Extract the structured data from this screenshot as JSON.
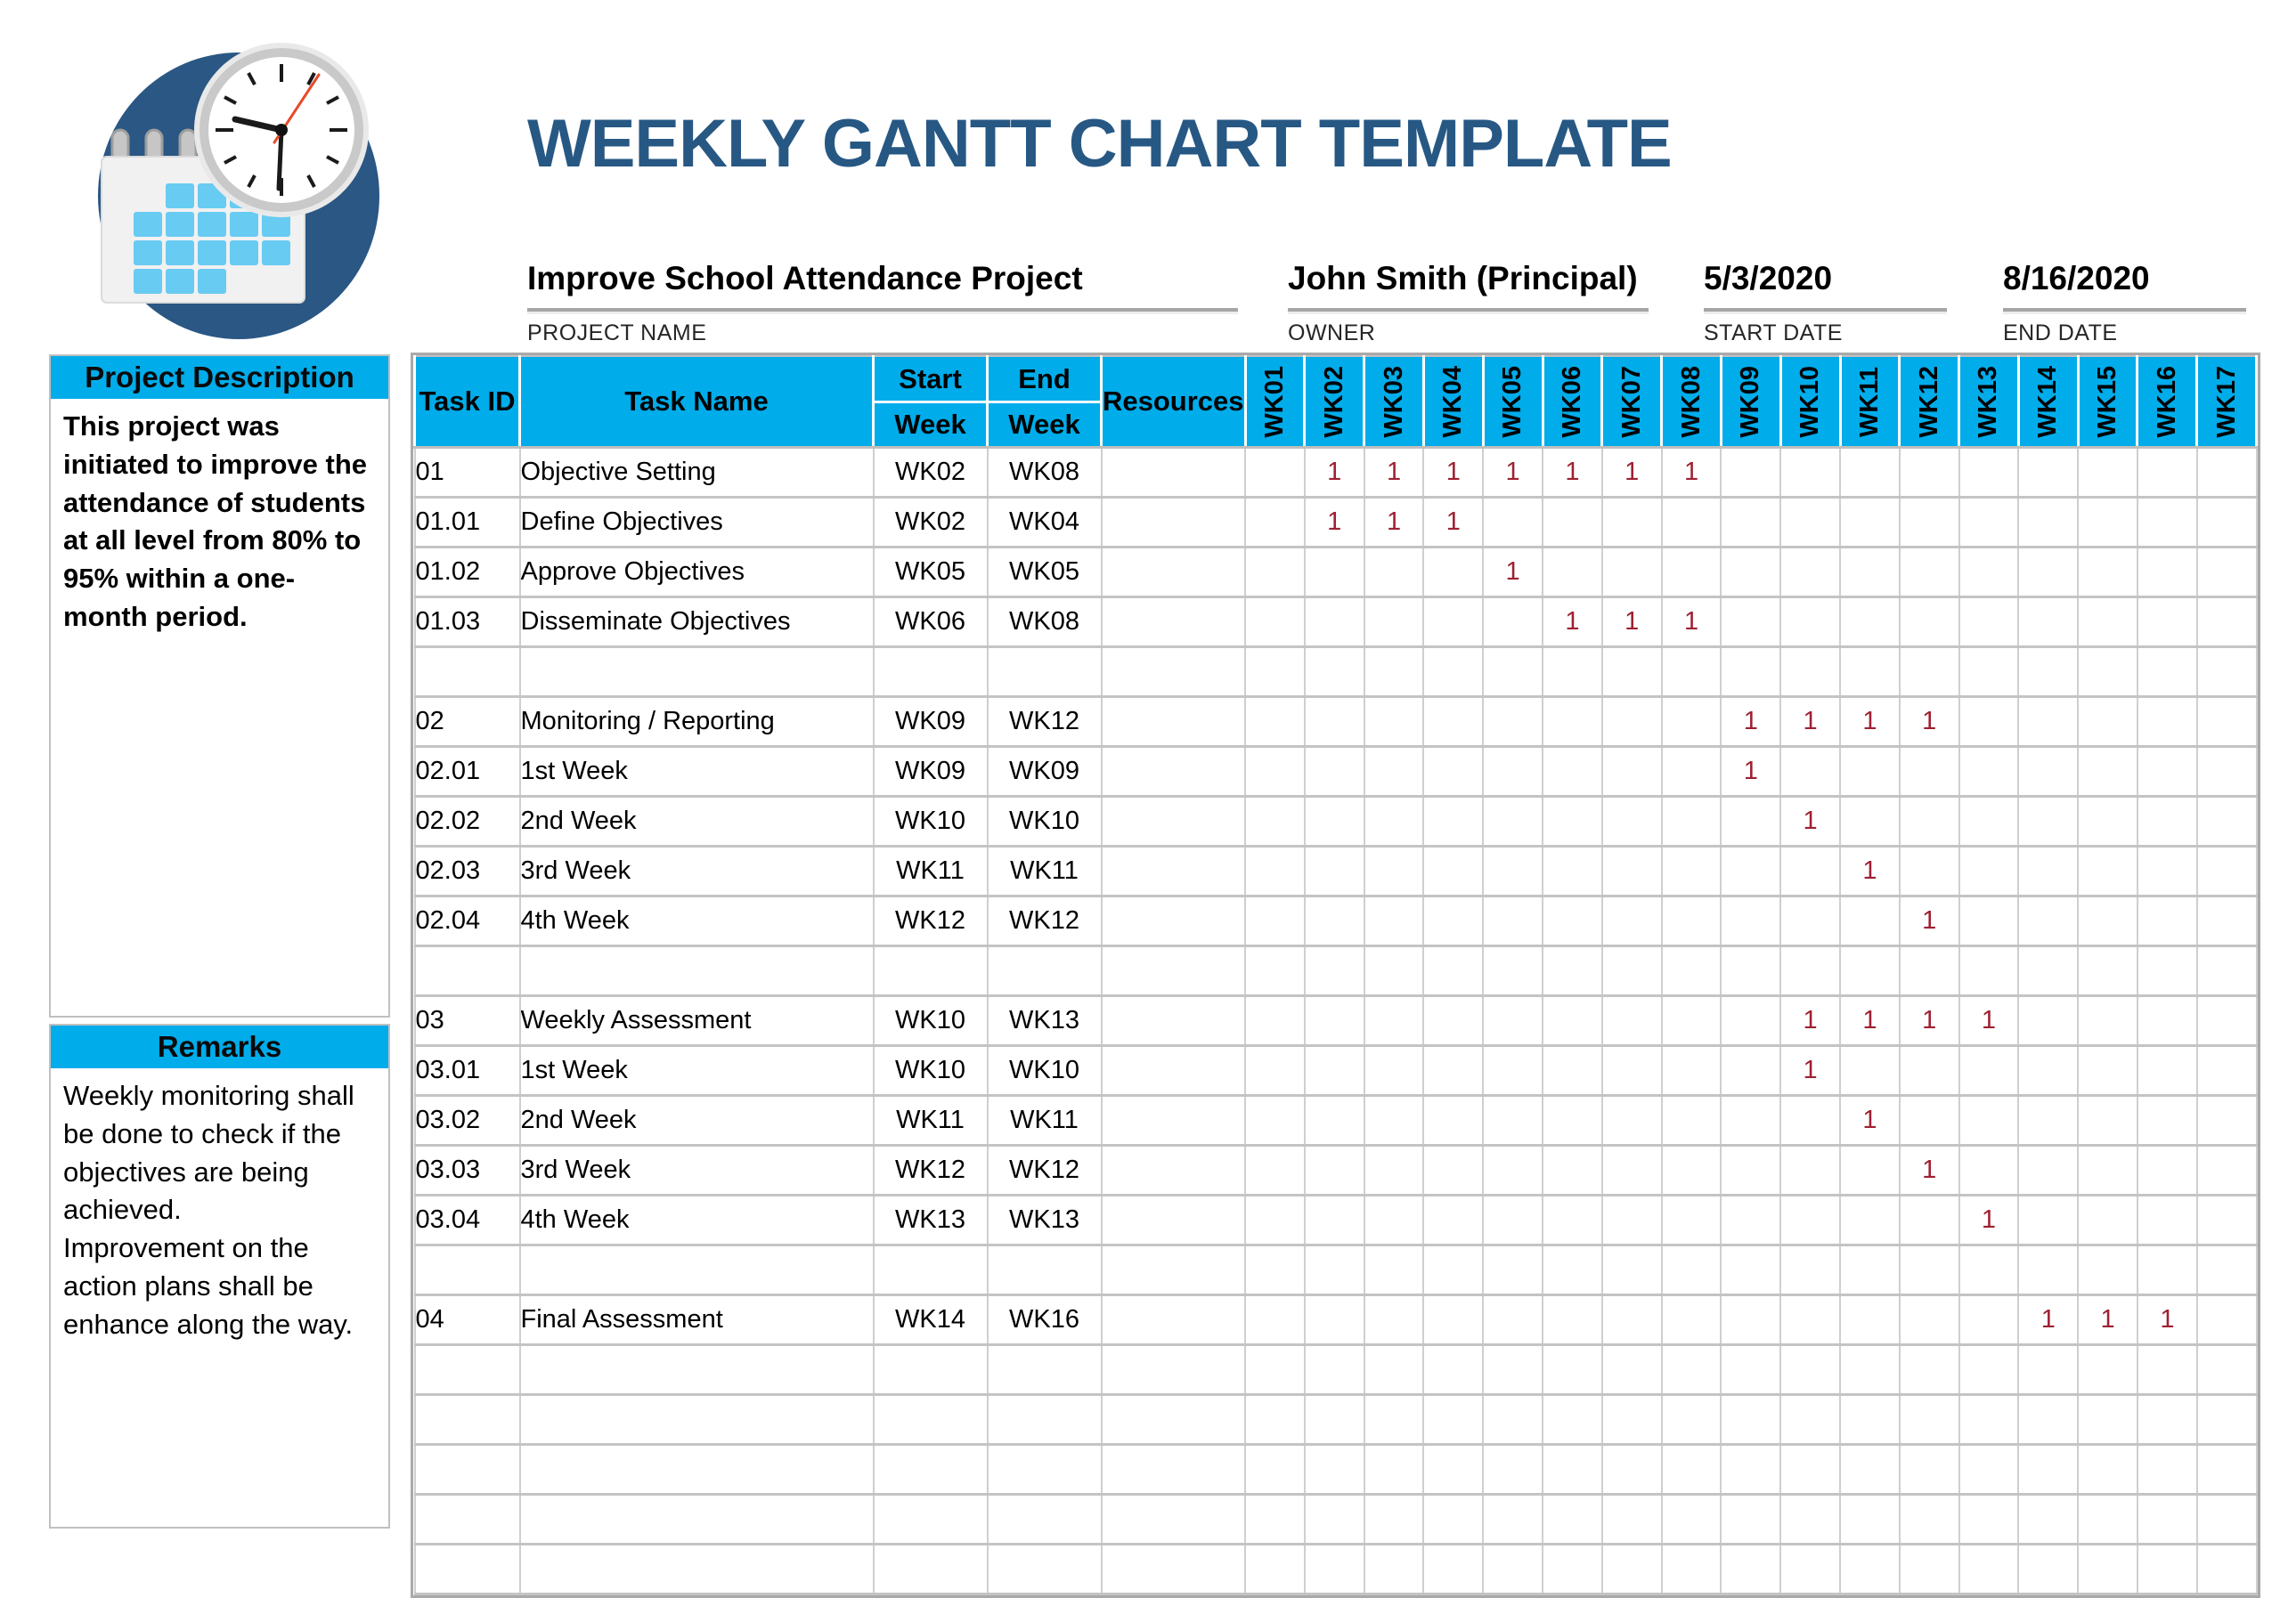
{
  "page": {
    "title": "WEEKLY GANTT CHART TEMPLATE"
  },
  "info": {
    "project_name": "Improve School Attendance Project",
    "project_name_label": "PROJECT NAME",
    "owner": "John Smith (Principal)",
    "owner_label": "OWNER",
    "start_date": "5/3/2020",
    "start_date_label": "START DATE",
    "end_date": "8/16/2020",
    "end_date_label": "END DATE"
  },
  "sidebar": {
    "description_header": "Project Description",
    "description_body": "This project was initiated to improve the attendance of students at all level from 80% to 95% within a one-month period.",
    "remarks_header": "Remarks",
    "remarks_body": "Weekly monitoring shall be done to check if the objectives are being achieved.\nImprovement on the action plans shall be enhance along the way."
  },
  "table": {
    "headers": {
      "task_id": "Task ID",
      "task_name": "Task Name",
      "start_line1": "Start",
      "start_line2": "Week",
      "end_line1": "End",
      "end_line2": "Week",
      "resources": "Resources"
    },
    "weeks": [
      "WK01",
      "WK02",
      "WK03",
      "WK04",
      "WK05",
      "WK06",
      "WK07",
      "WK08",
      "WK09",
      "WK10",
      "WK11",
      "WK12",
      "WK13",
      "WK14",
      "WK15",
      "WK16",
      "WK17"
    ],
    "bar_cell_text": "1",
    "rows": [
      {
        "task_id": "01",
        "task_name": "Objective Setting",
        "start_week": "WK02",
        "end_week": "WK08",
        "resources": "",
        "bar_start": 2,
        "bar_end": 8
      },
      {
        "task_id": "01.01",
        "task_name": "Define Objectives",
        "start_week": "WK02",
        "end_week": "WK04",
        "resources": "",
        "bar_start": 2,
        "bar_end": 4
      },
      {
        "task_id": "01.02",
        "task_name": "Approve Objectives",
        "start_week": "WK05",
        "end_week": "WK05",
        "resources": "",
        "bar_start": 5,
        "bar_end": 5
      },
      {
        "task_id": "01.03",
        "task_name": "Disseminate Objectives",
        "start_week": "WK06",
        "end_week": "WK08",
        "resources": "",
        "bar_start": 6,
        "bar_end": 8
      },
      {
        "task_id": "",
        "task_name": "",
        "start_week": "",
        "end_week": "",
        "resources": "",
        "bar_start": 0,
        "bar_end": 0
      },
      {
        "task_id": "02",
        "task_name": "Monitoring / Reporting",
        "start_week": "WK09",
        "end_week": "WK12",
        "resources": "",
        "bar_start": 9,
        "bar_end": 12
      },
      {
        "task_id": "02.01",
        "task_name": "1st Week",
        "start_week": "WK09",
        "end_week": "WK09",
        "resources": "",
        "bar_start": 9,
        "bar_end": 9
      },
      {
        "task_id": "02.02",
        "task_name": "2nd Week",
        "start_week": "WK10",
        "end_week": "WK10",
        "resources": "",
        "bar_start": 10,
        "bar_end": 10
      },
      {
        "task_id": "02.03",
        "task_name": "3rd Week",
        "start_week": "WK11",
        "end_week": "WK11",
        "resources": "",
        "bar_start": 11,
        "bar_end": 11
      },
      {
        "task_id": "02.04",
        "task_name": "4th Week",
        "start_week": "WK12",
        "end_week": "WK12",
        "resources": "",
        "bar_start": 12,
        "bar_end": 12
      },
      {
        "task_id": "",
        "task_name": "",
        "start_week": "",
        "end_week": "",
        "resources": "",
        "bar_start": 0,
        "bar_end": 0
      },
      {
        "task_id": "03",
        "task_name": "Weekly Assessment",
        "start_week": "WK10",
        "end_week": "WK13",
        "resources": "",
        "bar_start": 10,
        "bar_end": 13
      },
      {
        "task_id": "03.01",
        "task_name": "1st Week",
        "start_week": "WK10",
        "end_week": "WK10",
        "resources": "",
        "bar_start": 10,
        "bar_end": 10
      },
      {
        "task_id": "03.02",
        "task_name": "2nd Week",
        "start_week": "WK11",
        "end_week": "WK11",
        "resources": "",
        "bar_start": 11,
        "bar_end": 11
      },
      {
        "task_id": "03.03",
        "task_name": "3rd Week",
        "start_week": "WK12",
        "end_week": "WK12",
        "resources": "",
        "bar_start": 12,
        "bar_end": 12
      },
      {
        "task_id": "03.04",
        "task_name": "4th Week",
        "start_week": "WK13",
        "end_week": "WK13",
        "resources": "",
        "bar_start": 13,
        "bar_end": 13
      },
      {
        "task_id": "",
        "task_name": "",
        "start_week": "",
        "end_week": "",
        "resources": "",
        "bar_start": 0,
        "bar_end": 0
      },
      {
        "task_id": "04",
        "task_name": "Final Assessment",
        "start_week": "WK14",
        "end_week": "WK16",
        "resources": "",
        "bar_start": 14,
        "bar_end": 16
      },
      {
        "task_id": "",
        "task_name": "",
        "start_week": "",
        "end_week": "",
        "resources": "",
        "bar_start": 0,
        "bar_end": 0
      },
      {
        "task_id": "",
        "task_name": "",
        "start_week": "",
        "end_week": "",
        "resources": "",
        "bar_start": 0,
        "bar_end": 0
      },
      {
        "task_id": "",
        "task_name": "",
        "start_week": "",
        "end_week": "",
        "resources": "",
        "bar_start": 0,
        "bar_end": 0
      },
      {
        "task_id": "",
        "task_name": "",
        "start_week": "",
        "end_week": "",
        "resources": "",
        "bar_start": 0,
        "bar_end": 0
      },
      {
        "task_id": "",
        "task_name": "",
        "start_week": "",
        "end_week": "",
        "resources": "",
        "bar_start": 0,
        "bar_end": 0
      }
    ]
  },
  "chart_data": {
    "type": "bar",
    "subtype": "gantt",
    "title": "WEEKLY GANTT CHART TEMPLATE",
    "x_categories": [
      "WK01",
      "WK02",
      "WK03",
      "WK04",
      "WK05",
      "WK06",
      "WK07",
      "WK08",
      "WK09",
      "WK10",
      "WK11",
      "WK12",
      "WK13",
      "WK14",
      "WK15",
      "WK16",
      "WK17"
    ],
    "cell_fill_value": 1,
    "tasks": [
      {
        "id": "01",
        "name": "Objective Setting",
        "start": "WK02",
        "end": "WK08"
      },
      {
        "id": "01.01",
        "name": "Define Objectives",
        "start": "WK02",
        "end": "WK04"
      },
      {
        "id": "01.02",
        "name": "Approve Objectives",
        "start": "WK05",
        "end": "WK05"
      },
      {
        "id": "01.03",
        "name": "Disseminate Objectives",
        "start": "WK06",
        "end": "WK08"
      },
      {
        "id": "02",
        "name": "Monitoring / Reporting",
        "start": "WK09",
        "end": "WK12"
      },
      {
        "id": "02.01",
        "name": "1st Week",
        "start": "WK09",
        "end": "WK09"
      },
      {
        "id": "02.02",
        "name": "2nd Week",
        "start": "WK10",
        "end": "WK10"
      },
      {
        "id": "02.03",
        "name": "3rd Week",
        "start": "WK11",
        "end": "WK11"
      },
      {
        "id": "02.04",
        "name": "4th Week",
        "start": "WK12",
        "end": "WK12"
      },
      {
        "id": "03",
        "name": "Weekly Assessment",
        "start": "WK10",
        "end": "WK13"
      },
      {
        "id": "03.01",
        "name": "1st Week",
        "start": "WK10",
        "end": "WK10"
      },
      {
        "id": "03.02",
        "name": "2nd Week",
        "start": "WK11",
        "end": "WK11"
      },
      {
        "id": "03.03",
        "name": "3rd Week",
        "start": "WK12",
        "end": "WK12"
      },
      {
        "id": "03.04",
        "name": "4th Week",
        "start": "WK13",
        "end": "WK13"
      },
      {
        "id": "04",
        "name": "Final Assessment",
        "start": "WK14",
        "end": "WK16"
      }
    ]
  },
  "colors": {
    "header_blue": "#00ACEA",
    "bar_navy": "#2B5681",
    "bar_value_red": "#9E2032",
    "title_navy": "#275884",
    "grid_line": "#C4C4C4",
    "underline_gray": "#A6A6A6",
    "logo_circle_navy": "#2A5784",
    "logo_square_blue": "#67CBF2",
    "clock_second_red": "#E8492A"
  }
}
